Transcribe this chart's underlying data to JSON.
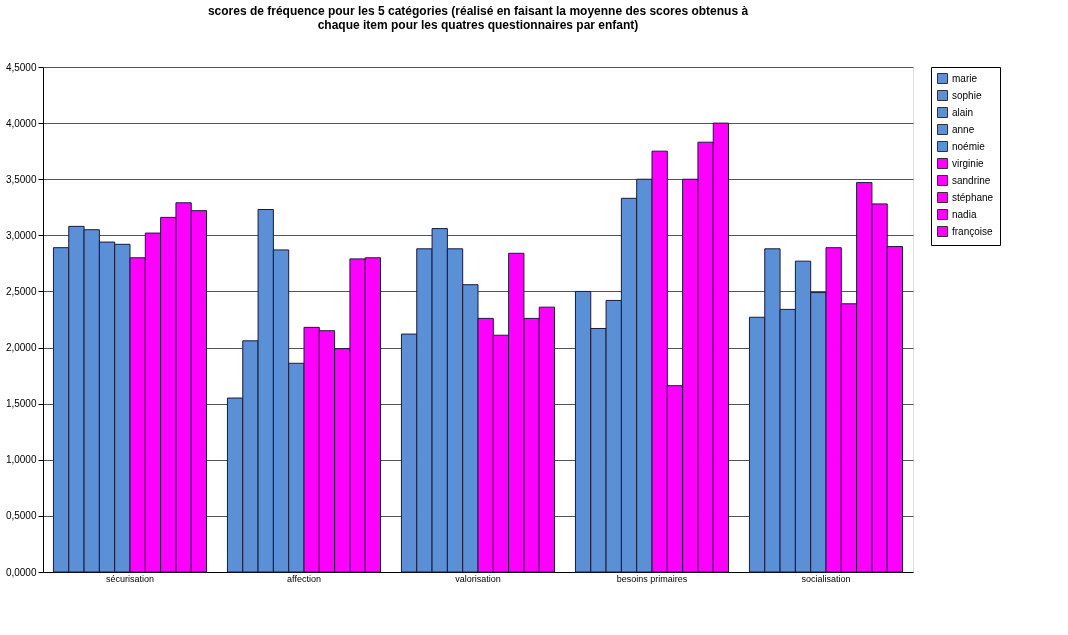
{
  "chart_data": {
    "type": "bar",
    "title": "scores de fréquence pour les 5 catégories (réalisé en faisant la moyenne des scores obtenus à chaque item pour les quatres questionnaires par enfant)",
    "categories": [
      "sécurisation",
      "affection",
      "valorisation",
      "besoins primaires",
      "socialisation"
    ],
    "series": [
      {
        "name": "marie",
        "color": "#5b8fd6",
        "values": [
          2.89,
          1.55,
          2.12,
          2.5,
          2.27
        ]
      },
      {
        "name": "sophie",
        "color": "#5b8fd6",
        "values": [
          3.08,
          2.06,
          2.88,
          2.17,
          2.88
        ]
      },
      {
        "name": "alain",
        "color": "#5b8fd6",
        "values": [
          3.05,
          3.23,
          3.06,
          2.42,
          2.34
        ]
      },
      {
        "name": "anne",
        "color": "#5b8fd6",
        "values": [
          2.94,
          2.87,
          2.88,
          3.33,
          2.77
        ]
      },
      {
        "name": "noémie",
        "color": "#5b8fd6",
        "values": [
          2.92,
          1.86,
          2.56,
          3.5,
          2.49
        ]
      },
      {
        "name": "virginie",
        "color": "#ff00ff",
        "values": [
          2.8,
          2.18,
          2.26,
          3.75,
          2.89
        ]
      },
      {
        "name": "sandrine",
        "color": "#ff00ff",
        "values": [
          3.02,
          2.15,
          2.11,
          1.66,
          2.39
        ]
      },
      {
        "name": "stéphane",
        "color": "#ff00ff",
        "values": [
          3.16,
          1.99,
          2.84,
          3.5,
          3.47
        ]
      },
      {
        "name": "nadia",
        "color": "#ff00ff",
        "values": [
          3.29,
          2.79,
          2.26,
          3.83,
          3.28
        ]
      },
      {
        "name": "françoise",
        "color": "#ff00ff",
        "values": [
          3.22,
          2.8,
          2.36,
          4.0,
          2.9
        ]
      }
    ],
    "ylim": [
      0,
      4.5
    ],
    "yticks": [
      {
        "value": 0,
        "label": "0,0000"
      },
      {
        "value": 0.5,
        "label": "0,5000"
      },
      {
        "value": 1,
        "label": "1,0000"
      },
      {
        "value": 1.5,
        "label": "1,5000"
      },
      {
        "value": 2,
        "label": "2,0000"
      },
      {
        "value": 2.5,
        "label": "2,5000"
      },
      {
        "value": 3,
        "label": "3,0000"
      },
      {
        "value": 3.5,
        "label": "3,5000"
      },
      {
        "value": 4,
        "label": "4,0000"
      },
      {
        "value": 4.5,
        "label": "4,5000"
      }
    ],
    "grid": "y",
    "legend": "right"
  }
}
